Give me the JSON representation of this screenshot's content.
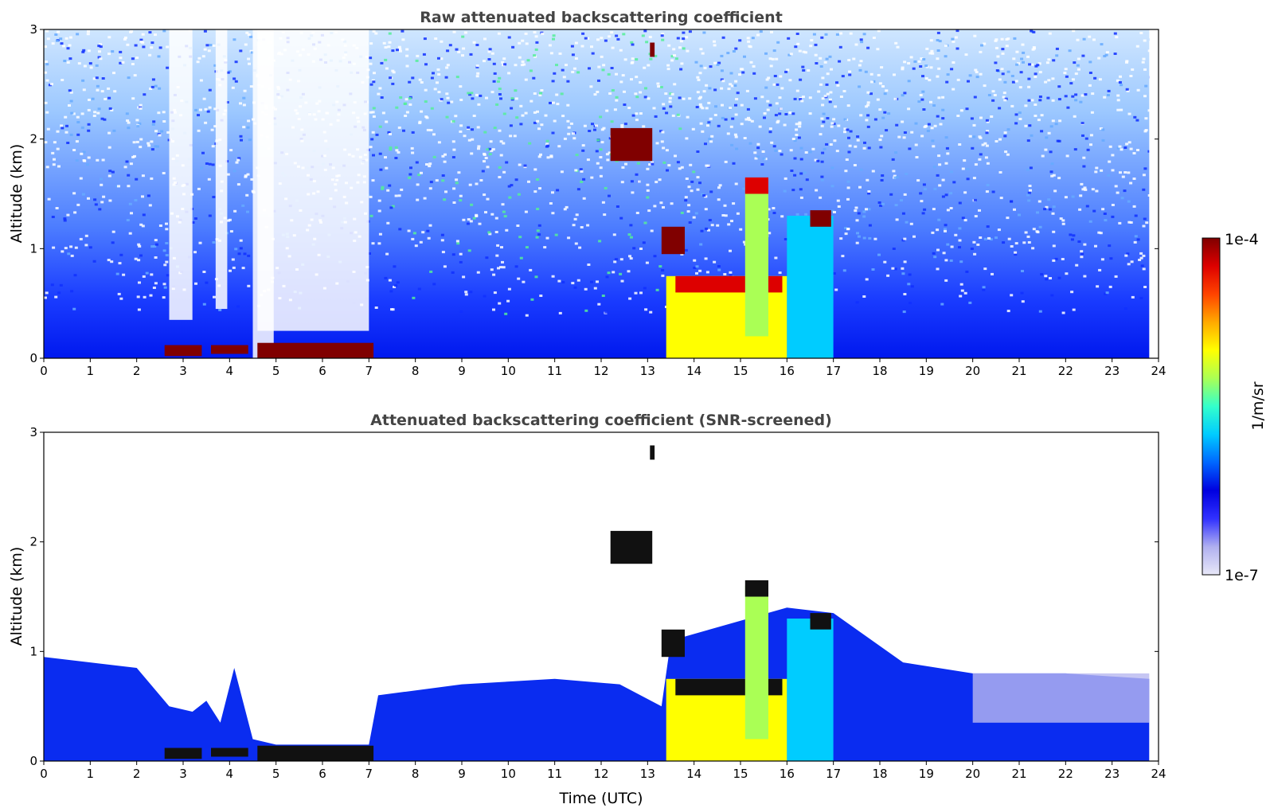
{
  "chart_data": [
    {
      "type": "heatmap",
      "title": "Raw attenuated backscattering coefficient",
      "xlabel": "",
      "ylabel": "Altitude (km)",
      "xlim": [
        0,
        24
      ],
      "ylim": [
        0,
        3
      ],
      "x_ticks": [
        "0",
        "1",
        "2",
        "3",
        "4",
        "5",
        "6",
        "7",
        "8",
        "9",
        "10",
        "11",
        "12",
        "13",
        "14",
        "15",
        "16",
        "17",
        "18",
        "19",
        "20",
        "21",
        "22",
        "23",
        "24"
      ],
      "y_ticks": [
        "0",
        "1",
        "2",
        "3"
      ],
      "features": [
        {
          "t0": 2.6,
          "t1": 3.4,
          "h0": 0.02,
          "h1": 0.12,
          "level": 1.0
        },
        {
          "t0": 3.6,
          "t1": 4.4,
          "h0": 0.04,
          "h1": 0.12,
          "level": 1.0
        },
        {
          "t0": 4.6,
          "t1": 7.1,
          "h0": 0.0,
          "h1": 0.14,
          "level": 1.0
        },
        {
          "t0": 12.2,
          "t1": 13.1,
          "h0": 1.8,
          "h1": 2.1,
          "level": 1.0
        },
        {
          "t0": 13.05,
          "t1": 13.15,
          "h0": 2.75,
          "h1": 2.88,
          "level": 1.0
        },
        {
          "t0": 13.3,
          "t1": 13.8,
          "h0": 0.95,
          "h1": 1.2,
          "level": 1.0
        },
        {
          "t0": 13.4,
          "t1": 16.0,
          "h0": 0.0,
          "h1": 0.75,
          "level": 0.7
        },
        {
          "t0": 13.6,
          "t1": 15.9,
          "h0": 0.6,
          "h1": 0.75,
          "level": 0.95
        },
        {
          "t0": 15.1,
          "t1": 15.6,
          "h0": 0.2,
          "h1": 1.6,
          "level": 0.55
        },
        {
          "t0": 15.1,
          "t1": 15.6,
          "h0": 1.5,
          "h1": 1.65,
          "level": 0.95
        },
        {
          "t0": 16.0,
          "t1": 17.0,
          "h0": 0.0,
          "h1": 1.3,
          "level": 0.45
        },
        {
          "t0": 16.5,
          "t1": 16.95,
          "h0": 1.2,
          "h1": 1.35,
          "level": 1.0
        }
      ]
    },
    {
      "type": "heatmap",
      "title": "Attenuated backscattering coefficient (SNR-screened)",
      "xlabel": "Time (UTC)",
      "ylabel": "Altitude (km)",
      "xlim": [
        0,
        24
      ],
      "ylim": [
        0,
        3
      ],
      "x_ticks": [
        "0",
        "1",
        "2",
        "3",
        "4",
        "5",
        "6",
        "7",
        "8",
        "9",
        "10",
        "11",
        "12",
        "13",
        "14",
        "15",
        "16",
        "17",
        "18",
        "19",
        "20",
        "21",
        "22",
        "23",
        "24"
      ],
      "y_ticks": [
        "0",
        "1",
        "2",
        "3"
      ]
    }
  ],
  "colorbar": {
    "label": "1/m/sr",
    "max_label": "1e-4",
    "min_label": "1e-7",
    "colormap": [
      "#e8e8f8",
      "#b0b0f0",
      "#3030ff",
      "#0000e0",
      "#0066ff",
      "#00ccff",
      "#33ffcc",
      "#aaff55",
      "#ffff00",
      "#ffaa00",
      "#ff4400",
      "#dd0000",
      "#800000"
    ]
  }
}
